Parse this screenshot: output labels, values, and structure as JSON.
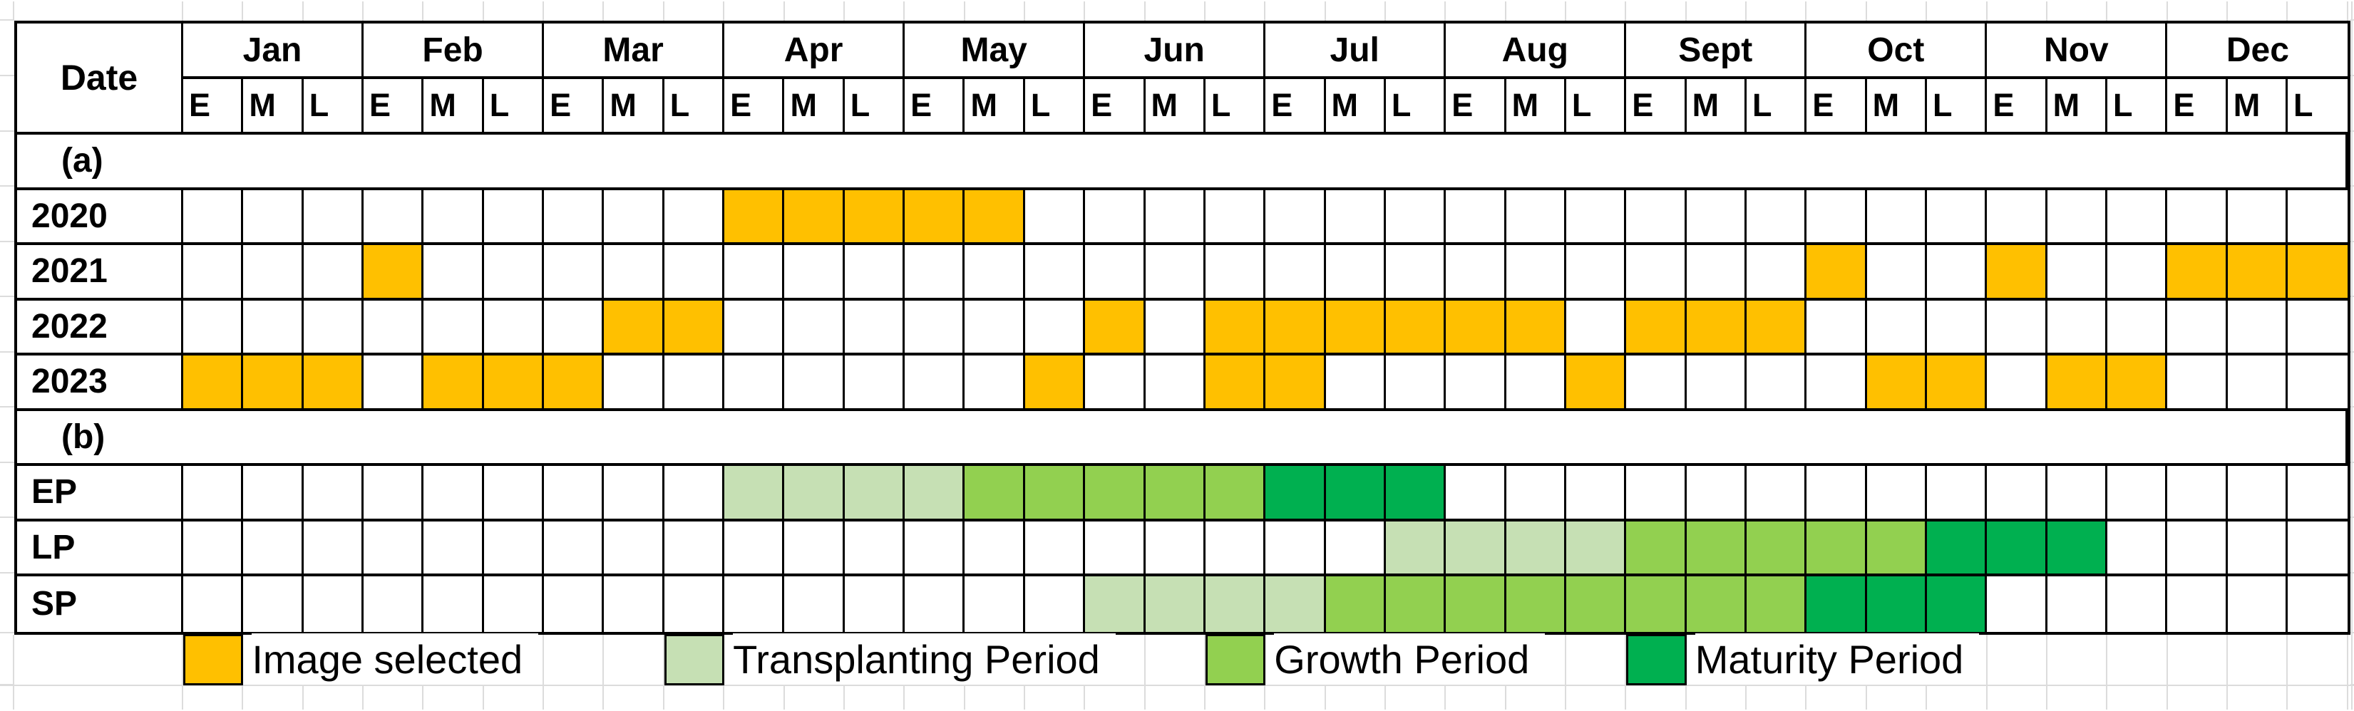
{
  "chart_data": {
    "type": "heatmap",
    "description_visible_text_only": true,
    "date_label": "Date",
    "months": [
      "Jan",
      "Feb",
      "Mar",
      "Apr",
      "May",
      "Jun",
      "Jul",
      "Aug",
      "Sept",
      "Oct",
      "Nov",
      "Dec"
    ],
    "sub_columns": [
      "E",
      "M",
      "L"
    ],
    "sections": [
      {
        "label": "(a)",
        "rows": [
          {
            "label": "2020",
            "cells": {
              "selected": [
                10,
                11,
                12,
                13,
                14
              ]
            }
          },
          {
            "label": "2021",
            "cells": {
              "selected": [
                4,
                28,
                31,
                34,
                35,
                36
              ]
            }
          },
          {
            "label": "2022",
            "cells": {
              "selected": [
                8,
                9,
                16,
                18,
                19,
                20,
                21,
                22,
                23,
                25,
                26,
                27
              ]
            }
          },
          {
            "label": "2023",
            "cells": {
              "selected": [
                1,
                2,
                3,
                5,
                6,
                7,
                15,
                18,
                19,
                24,
                29,
                30,
                32,
                33
              ]
            }
          }
        ]
      },
      {
        "label": "(b)",
        "rows": [
          {
            "label": "EP",
            "cells": {
              "transplanting": [
                10,
                11,
                12,
                13
              ],
              "growth": [
                14,
                15,
                16,
                17,
                18
              ],
              "maturity": [
                19,
                20,
                21
              ]
            }
          },
          {
            "label": "LP",
            "cells": {
              "transplanting": [
                21,
                22,
                23,
                24
              ],
              "growth": [
                25,
                26,
                27,
                28,
                29
              ],
              "maturity": [
                30,
                31,
                32
              ]
            }
          },
          {
            "label": "SP",
            "cells": {
              "transplanting": [
                16,
                17,
                18,
                19
              ],
              "growth": [
                20,
                21,
                22,
                23,
                24,
                25,
                26,
                27
              ],
              "maturity": [
                28,
                29,
                30
              ]
            }
          }
        ]
      }
    ],
    "legend": [
      {
        "key": "selected",
        "label": "Image selected",
        "column": 1
      },
      {
        "key": "transplanting",
        "label": "Transplanting Period",
        "column": 9
      },
      {
        "key": "growth",
        "label": "Growth Period",
        "column": 18
      },
      {
        "key": "maturity",
        "label": "Maturity Period",
        "column": 25
      }
    ],
    "colors": {
      "selected": "#FFC000",
      "transplanting": "#C6E0B4",
      "growth": "#92D050",
      "maturity": "#00B050",
      "border": "#000000",
      "faint_grid": "#DCDCDC"
    }
  }
}
